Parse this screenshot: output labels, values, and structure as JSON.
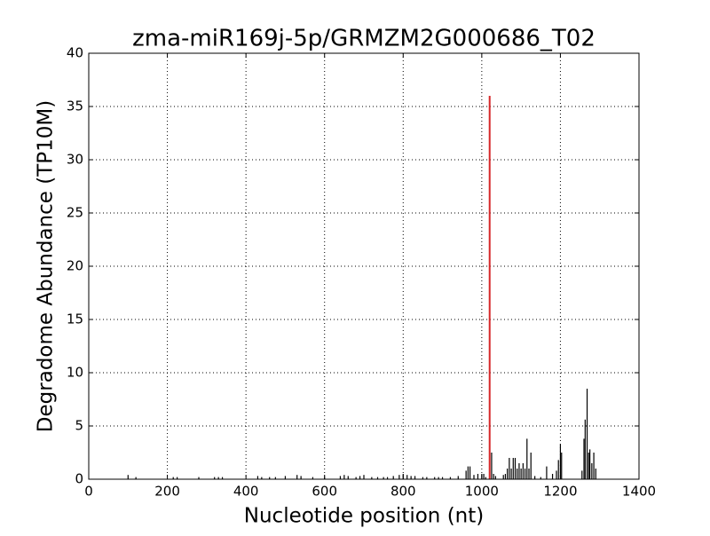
{
  "chart_data": {
    "type": "vlines",
    "title": "zma-miR169j-5p/GRMZM2G000686_T02",
    "xlabel": "Nucleotide position (nt)",
    "ylabel": "Degradome Abundance (TP10M)",
    "xlim": [
      0,
      1400
    ],
    "xticks": [
      0,
      200,
      400,
      600,
      800,
      1000,
      1200,
      1400
    ],
    "ylim": [
      0,
      40
    ],
    "yticks": [
      0,
      5,
      10,
      15,
      20,
      25,
      30,
      35,
      40
    ],
    "grid": true,
    "series": [
      {
        "color": "#000000",
        "x": [
          100,
          120,
          215,
          225,
          280,
          320,
          330,
          340,
          430,
          440,
          460,
          475,
          500,
          530,
          540,
          570,
          600,
          640,
          650,
          660,
          680,
          690,
          700,
          720,
          735,
          750,
          760,
          775,
          790,
          800,
          810,
          820,
          830,
          850,
          860,
          880,
          890,
          900,
          920,
          940,
          960,
          965,
          970,
          980,
          990,
          1000,
          1005,
          1010,
          1025,
          1030,
          1035,
          1055,
          1060,
          1065,
          1070,
          1075,
          1080,
          1085,
          1090,
          1095,
          1100,
          1105,
          1110,
          1115,
          1120,
          1125,
          1135,
          1150,
          1165,
          1180,
          1190,
          1195,
          1200,
          1203,
          1255,
          1260,
          1263,
          1268,
          1272,
          1275,
          1280,
          1285,
          1290
        ],
        "values": [
          0.4,
          0.2,
          0.2,
          0.2,
          0.2,
          0.2,
          0.2,
          0.2,
          0.3,
          0.2,
          0.2,
          0.2,
          0.3,
          0.4,
          0.3,
          0.2,
          0.2,
          0.3,
          0.4,
          0.3,
          0.2,
          0.3,
          0.4,
          0.2,
          0.2,
          0.2,
          0.2,
          0.3,
          0.4,
          0.5,
          0.4,
          0.3,
          0.3,
          0.2,
          0.2,
          0.2,
          0.2,
          0.2,
          0.2,
          0.3,
          0.8,
          1.2,
          1.2,
          0.4,
          0.5,
          0.5,
          0.5,
          0.2,
          2.5,
          0.5,
          0.3,
          0.4,
          0.5,
          1,
          2,
          1,
          2,
          2,
          1,
          1.5,
          1,
          1.5,
          1,
          3.8,
          1,
          2.5,
          0.3,
          0.2,
          1.2,
          0.5,
          0.8,
          1.8,
          3.3,
          2.5,
          0.8,
          3.8,
          5.6,
          8.5,
          2.5,
          2.8,
          1.5,
          2.5,
          1
        ]
      },
      {
        "color": "#d62728",
        "x": [
          1020
        ],
        "values": [
          36
        ]
      }
    ]
  }
}
